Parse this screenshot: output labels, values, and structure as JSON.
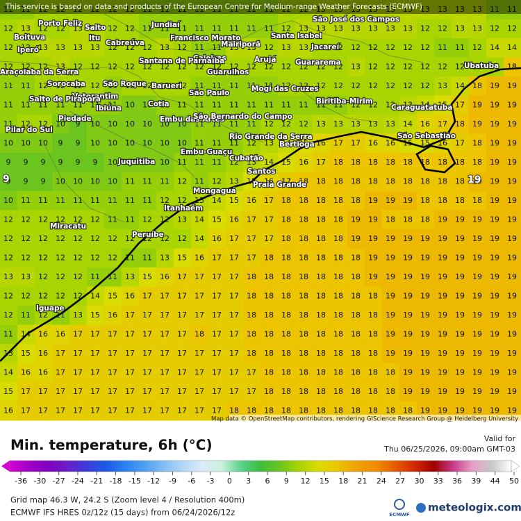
{
  "banner": "This service is based on data and products of the European Centre for Medium-range Weather Forecasts (ECMWF)",
  "attribution": "Map data © OpenStreetMap contributors, rendering GIScience Research Group @ Heidelberg University",
  "grid": {
    "rows": [
      [
        11,
        11,
        12,
        12,
        12,
        12,
        12,
        12,
        11,
        11,
        11,
        11,
        11,
        11,
        11,
        11,
        12,
        12,
        13,
        13,
        13,
        13,
        13,
        13,
        13,
        13,
        13,
        13,
        11,
        11
      ],
      [
        12,
        13,
        12,
        12,
        13,
        13,
        12,
        12,
        11,
        11,
        11,
        11,
        11,
        11,
        11,
        11,
        12,
        13,
        13,
        13,
        13,
        13,
        13,
        13,
        12,
        12,
        13,
        13,
        12,
        12
      ],
      [
        12,
        12,
        13,
        13,
        13,
        13,
        12,
        12,
        12,
        13,
        12,
        11,
        11,
        13,
        13,
        12,
        13,
        13,
        12,
        12,
        12,
        12,
        12,
        12,
        12,
        11,
        11,
        12,
        14,
        14
      ],
      [
        12,
        12,
        12,
        13,
        12,
        12,
        12,
        12,
        12,
        12,
        12,
        12,
        12,
        12,
        12,
        12,
        12,
        12,
        12,
        12,
        13,
        12,
        12,
        12,
        12,
        12,
        12,
        12,
        12,
        18
      ],
      [
        11,
        11,
        12,
        12,
        12,
        12,
        11,
        12,
        12,
        12,
        12,
        11,
        11,
        11,
        11,
        11,
        12,
        12,
        12,
        12,
        12,
        12,
        12,
        12,
        12,
        13,
        14,
        18,
        19,
        19
      ],
      [
        11,
        11,
        11,
        11,
        11,
        11,
        11,
        10,
        10,
        11,
        11,
        11,
        11,
        11,
        11,
        11,
        11,
        11,
        11,
        11,
        12,
        12,
        12,
        13,
        14,
        15,
        17,
        19,
        19,
        19
      ],
      [
        11,
        12,
        12,
        10,
        9,
        10,
        10,
        10,
        10,
        10,
        10,
        11,
        11,
        11,
        11,
        12,
        12,
        12,
        13,
        13,
        13,
        13,
        13,
        14,
        16,
        17,
        18,
        19,
        19,
        19
      ],
      [
        10,
        10,
        10,
        9,
        9,
        10,
        10,
        10,
        10,
        10,
        10,
        11,
        11,
        11,
        12,
        13,
        14,
        15,
        16,
        17,
        17,
        16,
        16,
        15,
        15,
        16,
        17,
        18,
        19,
        19
      ],
      [
        9,
        9,
        9,
        9,
        9,
        9,
        10,
        10,
        10,
        10,
        11,
        11,
        11,
        12,
        13,
        14,
        15,
        16,
        17,
        18,
        18,
        18,
        18,
        18,
        18,
        18,
        18,
        18,
        19,
        19
      ],
      [
        9,
        9,
        9,
        10,
        10,
        10,
        10,
        11,
        11,
        11,
        12,
        11,
        12,
        13,
        15,
        16,
        17,
        18,
        18,
        18,
        18,
        18,
        18,
        18,
        18,
        18,
        18,
        19,
        19,
        19
      ],
      [
        10,
        11,
        11,
        11,
        11,
        11,
        11,
        11,
        11,
        12,
        12,
        13,
        14,
        15,
        16,
        17,
        18,
        18,
        18,
        18,
        18,
        19,
        19,
        19,
        18,
        18,
        18,
        18,
        19,
        19
      ],
      [
        12,
        12,
        12,
        12,
        12,
        12,
        11,
        11,
        12,
        12,
        13,
        14,
        15,
        16,
        17,
        17,
        18,
        18,
        18,
        18,
        19,
        19,
        18,
        18,
        18,
        19,
        19,
        19,
        19,
        19
      ],
      [
        12,
        12,
        12,
        12,
        12,
        12,
        12,
        12,
        12,
        12,
        12,
        14,
        16,
        17,
        17,
        17,
        18,
        18,
        18,
        18,
        19,
        19,
        19,
        19,
        19,
        19,
        19,
        19,
        19,
        19
      ],
      [
        12,
        12,
        12,
        12,
        12,
        12,
        12,
        11,
        11,
        13,
        15,
        16,
        17,
        17,
        17,
        18,
        18,
        18,
        18,
        18,
        18,
        19,
        19,
        19,
        19,
        19,
        19,
        19,
        19,
        19
      ],
      [
        13,
        13,
        12,
        12,
        12,
        11,
        11,
        13,
        15,
        16,
        17,
        17,
        17,
        17,
        18,
        18,
        18,
        18,
        18,
        18,
        18,
        19,
        19,
        19,
        19,
        19,
        19,
        19,
        19,
        19
      ],
      [
        12,
        12,
        12,
        12,
        12,
        14,
        15,
        16,
        17,
        17,
        17,
        17,
        17,
        17,
        18,
        18,
        18,
        18,
        18,
        18,
        18,
        18,
        19,
        19,
        19,
        19,
        19,
        19,
        19,
        19
      ],
      [
        12,
        11,
        12,
        11,
        13,
        15,
        16,
        17,
        17,
        17,
        17,
        17,
        17,
        17,
        18,
        18,
        18,
        18,
        18,
        18,
        18,
        18,
        19,
        19,
        19,
        19,
        19,
        19,
        19,
        19
      ],
      [
        11,
        14,
        16,
        16,
        17,
        17,
        17,
        17,
        17,
        17,
        17,
        18,
        17,
        17,
        18,
        18,
        18,
        18,
        18,
        18,
        18,
        18,
        19,
        19,
        19,
        19,
        19,
        19,
        19,
        19
      ],
      [
        13,
        15,
        16,
        17,
        17,
        17,
        17,
        17,
        17,
        17,
        17,
        17,
        17,
        17,
        18,
        18,
        18,
        18,
        18,
        18,
        18,
        18,
        19,
        19,
        19,
        19,
        19,
        19,
        19,
        19
      ],
      [
        14,
        16,
        16,
        17,
        17,
        17,
        17,
        17,
        17,
        17,
        17,
        17,
        17,
        17,
        17,
        18,
        18,
        18,
        18,
        18,
        18,
        18,
        18,
        19,
        19,
        19,
        19,
        19,
        19,
        19
      ],
      [
        15,
        17,
        17,
        17,
        17,
        17,
        17,
        17,
        17,
        17,
        17,
        17,
        17,
        17,
        17,
        18,
        18,
        18,
        18,
        18,
        18,
        18,
        18,
        19,
        19,
        19,
        19,
        19,
        19,
        19
      ],
      [
        16,
        17,
        17,
        17,
        17,
        17,
        17,
        17,
        17,
        17,
        17,
        17,
        17,
        18,
        18,
        18,
        18,
        18,
        18,
        18,
        18,
        18,
        18,
        18,
        19,
        19,
        19,
        19,
        19,
        19
      ]
    ]
  },
  "extremes": [
    9,
    19
  ],
  "cities": [
    "Porto Feliz",
    "Salto",
    "Itu",
    "Jundiaí",
    "Boituva",
    "Iperó",
    "Cabreúva",
    "Francisco Morato",
    "Mairiporã",
    "Santa Isabel",
    "São José dos Campos",
    "Jacareí",
    "Caieiras",
    "Arujá",
    "Guararema",
    "Santana de Parnaíba",
    "Guarulhos",
    "Araçoiaba da Serra",
    "Sorocaba",
    "São Roque",
    "Barueri",
    "Mogi das Cruzes",
    "Ubatuba",
    "Votorantim",
    "São Paulo",
    "Salto de Pirapora",
    "Ibiúna",
    "Cotia",
    "Biritiba-Mirim",
    "Caraguatatuba",
    "Piedade",
    "Embu das Artes",
    "São Bernardo do Campo",
    "Pilar do Sul",
    "Rio Grande da Serra",
    "Bertioga",
    "São Sebastião",
    "Embu-Guaçu",
    "Cubatão",
    "Juquitiba",
    "Santos",
    "Praia Grande",
    "Mongaguá",
    "Itanhaém",
    "Miracatu",
    "Peruíbe",
    "Iguape"
  ],
  "footer": {
    "title": "Min. temperature, 6h (°C)",
    "valid_label": "Valid for",
    "valid_time": "Thu 06/25/2026, 09:00am GMT-03",
    "grid_info": "Grid map 46.3 W, 24.2 S (Zoom level 4 / Resolution 400m)",
    "model_info": "ECMWF IFS HRES 0z/12z (15 days) from 06/24/2026/12z",
    "ecmwf_logo": "ECMWF",
    "brand": "meteologix.com"
  },
  "legend": {
    "ticks": [
      -36,
      -30,
      -27,
      -24,
      -21,
      -18,
      -15,
      -12,
      -9,
      -6,
      -3,
      0,
      3,
      6,
      9,
      12,
      15,
      18,
      21,
      24,
      27,
      30,
      33,
      36,
      39,
      44,
      50
    ],
    "colors": [
      "#d400d4",
      "#a000c8",
      "#8000c0",
      "#6a1ec8",
      "#3c3cdc",
      "#1e5ae6",
      "#2a82f0",
      "#50a0f0",
      "#82bef5",
      "#b4d8f8",
      "#dcecfa",
      "#c8f0dc",
      "#5ad28c",
      "#3cbe3c",
      "#6cc41e",
      "#a8d400",
      "#d8dc00",
      "#ecc400",
      "#f0a000",
      "#f08c00",
      "#e65a00",
      "#d22800",
      "#a00000",
      "#c83c8c",
      "#e6a0c8",
      "#c8c8c8",
      "#ffffff"
    ]
  }
}
